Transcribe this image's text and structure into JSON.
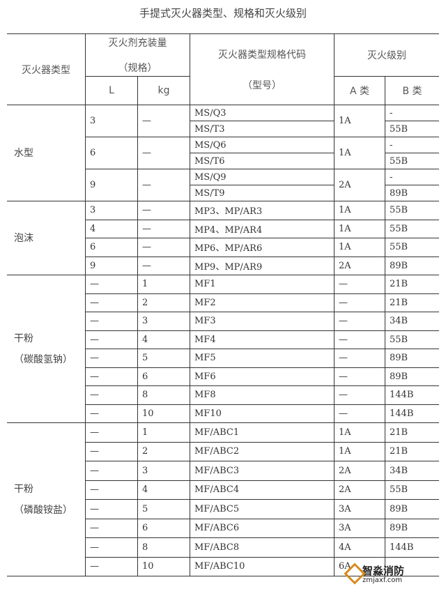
{
  "title": "手提式灭火器类型、规格和灭火级别",
  "header": {
    "type": "灭火器类型",
    "amount_line1": "灭火剂充装量",
    "amount_line2": "（规格）",
    "L": "L",
    "kg": "kg",
    "code_line1": "灭火器类型规格代码",
    "code_line2": "（型号）",
    "rating": "灭火级别",
    "A": "A 类",
    "B": "B 类"
  },
  "sections": [
    {
      "type": [
        "水型"
      ],
      "groups": [
        {
          "L": "3",
          "kg": "—",
          "A": "1A",
          "rows": [
            {
              "code": "MS/Q3",
              "B": "-"
            },
            {
              "code": "MS/T3",
              "B": "55B"
            }
          ]
        },
        {
          "L": "6",
          "kg": "—",
          "A": "1A",
          "rows": [
            {
              "code": "MS/Q6",
              "B": "-"
            },
            {
              "code": "MS/T6",
              "B": "55B"
            }
          ]
        },
        {
          "L": "9",
          "kg": "—",
          "A": "2A",
          "rows": [
            {
              "code": "MS/Q9",
              "B": "-"
            },
            {
              "code": "MS/T9",
              "B": "89B"
            }
          ]
        }
      ]
    },
    {
      "type": [
        "泡沫"
      ],
      "groups": [
        {
          "L": "3",
          "kg": "—",
          "A": "1A",
          "rows": [
            {
              "code": "MP3、MP/AR3",
              "B": "55B"
            }
          ]
        },
        {
          "L": "4",
          "kg": "—",
          "A": "1A",
          "rows": [
            {
              "code": "MP4、MP/AR4",
              "B": "55B"
            }
          ]
        },
        {
          "L": "6",
          "kg": "—",
          "A": "1A",
          "rows": [
            {
              "code": "MP6、MP/AR6",
              "B": "55B"
            }
          ]
        },
        {
          "L": "9",
          "kg": "—",
          "A": "2A",
          "rows": [
            {
              "code": "MP9、MP/AR9",
              "B": "89B"
            }
          ]
        }
      ]
    },
    {
      "type": [
        "干粉",
        "（碳酸氢钠）"
      ],
      "groups": [
        {
          "L": "—",
          "kg": "1",
          "A": "—",
          "rows": [
            {
              "code": "MF1",
              "B": "21B"
            }
          ]
        },
        {
          "L": "—",
          "kg": "2",
          "A": "—",
          "rows": [
            {
              "code": "MF2",
              "B": "21B"
            }
          ]
        },
        {
          "L": "—",
          "kg": "3",
          "A": "—",
          "rows": [
            {
              "code": "MF3",
              "B": "34B"
            }
          ]
        },
        {
          "L": "—",
          "kg": "4",
          "A": "—",
          "rows": [
            {
              "code": "MF4",
              "B": "55B"
            }
          ]
        },
        {
          "L": "—",
          "kg": "5",
          "A": "—",
          "rows": [
            {
              "code": "MF5",
              "B": "89B"
            }
          ]
        },
        {
          "L": "—",
          "kg": "6",
          "A": "—",
          "rows": [
            {
              "code": "MF6",
              "B": "89B"
            }
          ]
        },
        {
          "L": "—",
          "kg": "8",
          "A": "—",
          "rows": [
            {
              "code": "MF8",
              "B": "144B"
            }
          ]
        },
        {
          "L": "—",
          "kg": "10",
          "A": "—",
          "rows": [
            {
              "code": "MF10",
              "B": "144B"
            }
          ]
        }
      ]
    },
    {
      "type": [
        "干粉",
        "（磷酸铵盐）"
      ],
      "groups": [
        {
          "L": "—",
          "kg": "1",
          "A": "1A",
          "rows": [
            {
              "code": "MF/ABC1",
              "B": "21B"
            }
          ]
        },
        {
          "L": "—",
          "kg": "2",
          "A": "1A",
          "rows": [
            {
              "code": "MF/ABC2",
              "B": "21B"
            }
          ]
        },
        {
          "L": "—",
          "kg": "3",
          "A": "2A",
          "rows": [
            {
              "code": "MF/ABC3",
              "B": "34B"
            }
          ]
        },
        {
          "L": "—",
          "kg": "4",
          "A": "2A",
          "rows": [
            {
              "code": "MF/ABC4",
              "B": "55B"
            }
          ]
        },
        {
          "L": "—",
          "kg": "5",
          "A": "3A",
          "rows": [
            {
              "code": "MF/ABC5",
              "B": "89B"
            }
          ]
        },
        {
          "L": "—",
          "kg": "6",
          "A": "3A",
          "rows": [
            {
              "code": "MF/ABC6",
              "B": "89B"
            }
          ]
        },
        {
          "L": "—",
          "kg": "8",
          "A": "4A",
          "rows": [
            {
              "code": "MF/ABC8",
              "B": "144B"
            }
          ]
        },
        {
          "L": "—",
          "kg": "10",
          "A": "6A",
          "rows": [
            {
              "code": "MF/ABC10",
              "B": ""
            }
          ]
        }
      ]
    }
  ],
  "watermark": {
    "name": "智淼消防",
    "url": "zmjaxf.com"
  }
}
